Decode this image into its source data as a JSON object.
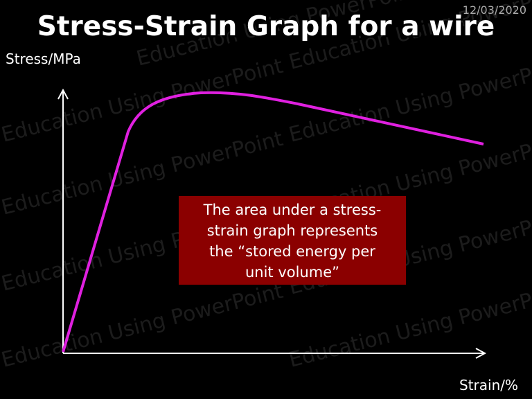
{
  "header": {
    "date": "12/03/2020",
    "title": "Stress-Strain Graph for a wire"
  },
  "graph": {
    "y_label": "Stress/MPa",
    "x_label": "Strain/%"
  },
  "note": {
    "lines": [
      "The area under a stress-",
      "strain graph represents",
      "the “stored energy per",
      "unit volume”"
    ]
  },
  "watermarks": [
    "Education Using PowerPoint",
    "Education Using PowerPoint",
    "Education Using PowerPoint",
    "Education Using PowerPoint",
    "Education Using PowerPoint",
    "Education Using PowerPoint",
    "Education Using PowerPoint",
    "Education Using PowerPoint",
    "Education Using PowerPoint",
    "Education Using PowerPoint"
  ]
}
